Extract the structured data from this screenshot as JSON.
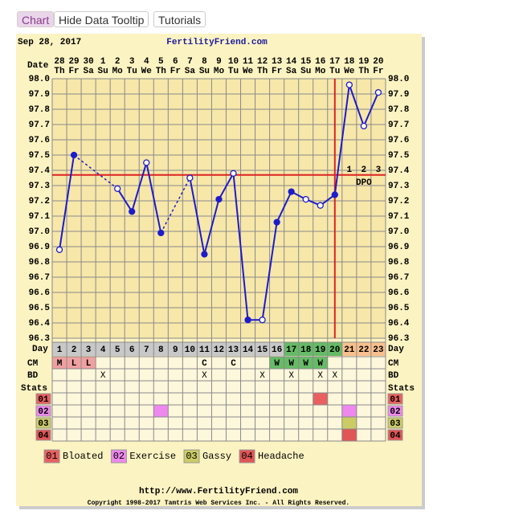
{
  "buttons": [
    "Chart",
    "Hide Data Tooltip",
    "Tutorials"
  ],
  "chart_data": {
    "type": "line",
    "date_label": "Sep 28, 2017",
    "title": "FertilityFriend.com",
    "row_labels": [
      "Date",
      "Day",
      "CM",
      "BD",
      "Stats"
    ],
    "categories": [
      "28",
      "29",
      "30",
      "1",
      "2",
      "3",
      "4",
      "5",
      "6",
      "7",
      "8",
      "9",
      "10",
      "11",
      "12",
      "13",
      "14",
      "15",
      "16",
      "17",
      "18",
      "19",
      "20"
    ],
    "weekdays": [
      "Th",
      "Fr",
      "Sa",
      "Su",
      "Mo",
      "Tu",
      "We",
      "Th",
      "Fr",
      "Sa",
      "Su",
      "Mo",
      "Tu",
      "We",
      "Th",
      "Fr",
      "Sa",
      "Su",
      "Mo",
      "Tu",
      "We",
      "Th",
      "Fr"
    ],
    "ylim": [
      96.3,
      98.0
    ],
    "yticks": [
      {
        "value": 98.0,
        "label": "98.0"
      },
      97.9,
      97.8,
      97.7,
      97.6,
      97.5,
      97.4,
      97.3,
      97.2,
      97.1,
      {
        "value": 97.0,
        "label": "97.0"
      },
      96.9,
      96.8,
      96.7,
      96.6,
      96.5,
      96.4,
      96.3
    ],
    "color": "#1c1ccc",
    "values": [
      96.88,
      97.5,
      null,
      null,
      97.28,
      97.13,
      97.45,
      96.99,
      null,
      97.35,
      96.85,
      97.21,
      97.38,
      96.42,
      96.42,
      97.06,
      97.26,
      97.21,
      97.17,
      97.24,
      97.96,
      97.69,
      97.91
    ],
    "hollow": [
      true,
      false,
      false,
      false,
      true,
      false,
      true,
      false,
      false,
      true,
      false,
      false,
      true,
      false,
      true,
      false,
      false,
      true,
      true,
      false,
      true,
      true,
      true
    ],
    "coverline": 97.37,
    "ovulation_day": 20,
    "line_color": "#dd2222",
    "dpo_labels": [
      1,
      2,
      3
    ],
    "dpo_text": "DPO",
    "days": [
      1,
      2,
      3,
      4,
      5,
      6,
      7,
      8,
      9,
      10,
      11,
      12,
      13,
      14,
      15,
      16,
      17,
      18,
      19,
      20,
      21,
      22,
      23
    ],
    "day_colors": [
      "#c8c8c8",
      "#c8c8c8",
      "#c8c8c8",
      "#c8c8c8",
      "#c8c8c8",
      "#c8c8c8",
      "#c8c8c8",
      "#c8c8c8",
      "#c8c8c8",
      "#c8c8c8",
      "#c8c8c8",
      "#c8c8c8",
      "#c8c8c8",
      "#c8c8c8",
      "#c8c8c8",
      "#c8c8c8",
      "#66bb66",
      "#66bb66",
      "#66bb66",
      "#66bb66",
      "#f8c08e",
      "#f8c08e",
      "#f8c08e"
    ],
    "cm": [
      "M",
      "L",
      "L",
      null,
      null,
      null,
      null,
      null,
      null,
      null,
      "C",
      null,
      "C",
      null,
      null,
      "W",
      "W",
      "W",
      "W",
      null,
      null,
      null,
      null
    ],
    "cm_colors": {
      "M": "#f0a0a0",
      "L": "#f0a0a0",
      "W": "#66bb66"
    },
    "bd": [
      null,
      null,
      null,
      "X",
      null,
      null,
      null,
      null,
      null,
      null,
      "X",
      null,
      null,
      null,
      "X",
      null,
      "X",
      null,
      "X",
      "X",
      null,
      null,
      null
    ],
    "stats": [
      {
        "code": "01",
        "name": "Bloated",
        "color": "#e86060",
        "days": [
          19
        ]
      },
      {
        "code": "02",
        "name": "Exercise",
        "color": "#ee88ee",
        "days": [
          8,
          21
        ]
      },
      {
        "code": "03",
        "name": "Gassy",
        "color": "#cccc66",
        "days": [
          21
        ]
      },
      {
        "code": "04",
        "name": "Headache",
        "color": "#e05555",
        "days": [
          21
        ]
      }
    ]
  },
  "footer": {
    "url": "http://www.FertilityFriend.com",
    "copyright": "Copyright 1998-2017 Tamtris Web Services Inc. - All Rights Reserved."
  }
}
